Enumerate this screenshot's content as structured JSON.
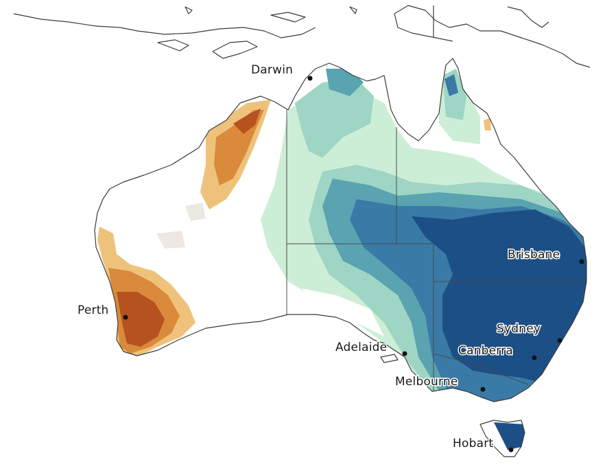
{
  "map": {
    "region": "Australia",
    "palette": {
      "dry_dark": "#b5521f",
      "dry_mid": "#d98a3a",
      "dry_light": "#efc27c",
      "neutral_gray": "#ece9e4",
      "neutral": "#ffffff",
      "wet_light": "#cdeed6",
      "wet_mid": "#9ed5c4",
      "wet_teal": "#5aa3b0",
      "wet_blue": "#3a7aa6",
      "wet_dark": "#1c4f86"
    },
    "cities": [
      {
        "id": "darwin",
        "name": "Darwin"
      },
      {
        "id": "brisbane",
        "name": "Brisbane"
      },
      {
        "id": "perth",
        "name": "Perth"
      },
      {
        "id": "adelaide",
        "name": "Adelaide"
      },
      {
        "id": "sydney",
        "name": "Sydney"
      },
      {
        "id": "canberra",
        "name": "Canberra"
      },
      {
        "id": "melbourne",
        "name": "Melbourne"
      },
      {
        "id": "hobart",
        "name": "Hobart"
      }
    ]
  }
}
